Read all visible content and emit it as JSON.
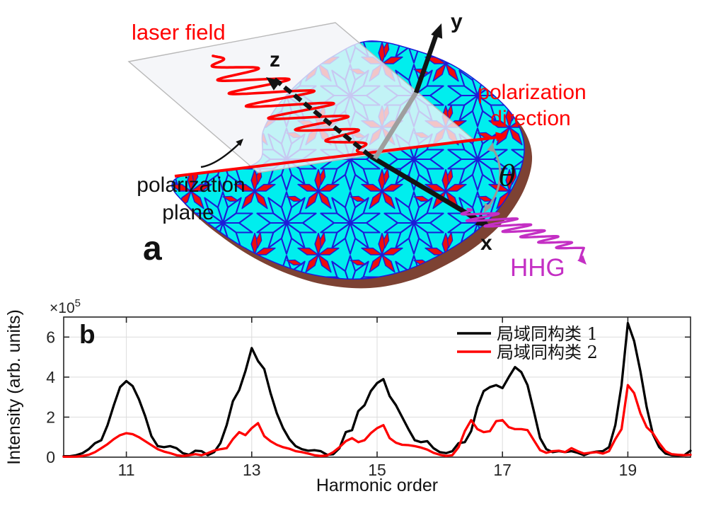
{
  "panel_a": {
    "panel_label": "a",
    "laser_field_label": "laser field",
    "polarization_plane_label_line1": "polarization",
    "polarization_plane_label_line2": "plane",
    "polarization_direction_label_line1": "polarization",
    "polarization_direction_label_line2": "direction",
    "hhg_label": "HHG",
    "axis_labels": {
      "x": "x",
      "y": "y",
      "z": "z"
    },
    "angle_label": "θ",
    "colors": {
      "laser_red": "#ff0000",
      "hhg_magenta": "#c42fc4",
      "tile_fill": "#00eeee",
      "tile_stroke": "#1c1cd8",
      "star_red": "#ee0d0d",
      "shadow_brown": "#7d4233",
      "plane_border": "#b9b9b9",
      "angle_arc_gray": "#9a9a9a",
      "axis_black": "#141414"
    }
  },
  "panel_b": {
    "panel_label": "b",
    "y_exponent_base": "×10",
    "y_exponent_sup": "5"
  },
  "chart_data": {
    "type": "line",
    "title": "",
    "xlabel": "Harmonic order",
    "ylabel": "Intensity (arb. units)",
    "y_multiplier": "×10^5",
    "xlim": [
      10,
      20
    ],
    "ylim": [
      0,
      7
    ],
    "x_ticks": [
      11,
      13,
      15,
      17,
      19
    ],
    "y_ticks": [
      0,
      2,
      4,
      6
    ],
    "grid": true,
    "legend_position": "top-right-inside",
    "x": [
      10.0,
      10.1,
      10.2,
      10.3,
      10.4,
      10.5,
      10.6,
      10.7,
      10.8,
      10.9,
      11.0,
      11.1,
      11.2,
      11.3,
      11.4,
      11.5,
      11.6,
      11.7,
      11.8,
      11.9,
      12.0,
      12.1,
      12.2,
      12.3,
      12.4,
      12.5,
      12.6,
      12.7,
      12.8,
      12.9,
      13.0,
      13.1,
      13.2,
      13.3,
      13.4,
      13.5,
      13.6,
      13.7,
      13.8,
      13.9,
      14.0,
      14.1,
      14.2,
      14.3,
      14.4,
      14.5,
      14.6,
      14.7,
      14.8,
      14.9,
      15.0,
      15.1,
      15.2,
      15.3,
      15.4,
      15.5,
      15.6,
      15.7,
      15.8,
      15.9,
      16.0,
      16.1,
      16.2,
      16.3,
      16.4,
      16.5,
      16.6,
      16.7,
      16.8,
      16.9,
      17.0,
      17.1,
      17.2,
      17.3,
      17.4,
      17.5,
      17.6,
      17.7,
      17.8,
      17.9,
      18.0,
      18.1,
      18.2,
      18.3,
      18.4,
      18.5,
      18.6,
      18.7,
      18.8,
      18.9,
      19.0,
      19.1,
      19.2,
      19.3,
      19.4,
      19.5,
      19.6,
      19.7,
      19.8,
      19.9,
      20.0
    ],
    "series": [
      {
        "name": "局域同构类 1",
        "color": "#000000",
        "values": [
          0.05,
          0.05,
          0.1,
          0.2,
          0.4,
          0.7,
          0.85,
          1.6,
          2.6,
          3.5,
          3.8,
          3.55,
          2.9,
          2.05,
          1.05,
          0.55,
          0.5,
          0.55,
          0.45,
          0.2,
          0.12,
          0.32,
          0.3,
          0.1,
          0.25,
          0.7,
          1.6,
          2.8,
          3.35,
          4.3,
          5.45,
          4.8,
          4.4,
          3.2,
          2.2,
          1.45,
          0.9,
          0.55,
          0.4,
          0.32,
          0.35,
          0.3,
          0.12,
          0.15,
          0.45,
          1.25,
          1.35,
          2.3,
          2.6,
          3.3,
          3.7,
          3.9,
          3.05,
          2.6,
          2.0,
          1.4,
          0.85,
          0.75,
          0.8,
          0.45,
          0.25,
          0.2,
          0.3,
          0.7,
          0.75,
          1.3,
          2.5,
          3.3,
          3.5,
          3.6,
          3.45,
          4.0,
          4.5,
          4.25,
          3.6,
          2.3,
          0.95,
          0.4,
          0.25,
          0.3,
          0.25,
          0.3,
          0.22,
          0.1,
          0.22,
          0.28,
          0.3,
          0.5,
          1.6,
          3.6,
          6.7,
          5.8,
          4.3,
          2.5,
          1.15,
          0.5,
          0.18,
          0.1,
          0.08,
          0.1,
          0.32
        ]
      },
      {
        "name": "局域同构类 2",
        "color": "#ff0000",
        "values": [
          0.02,
          0.02,
          0.03,
          0.06,
          0.12,
          0.25,
          0.45,
          0.65,
          0.9,
          1.1,
          1.2,
          1.15,
          1.0,
          0.8,
          0.6,
          0.4,
          0.28,
          0.2,
          0.1,
          0.06,
          0.1,
          0.15,
          0.1,
          0.2,
          0.33,
          0.4,
          0.45,
          0.9,
          1.25,
          1.1,
          1.45,
          1.7,
          1.05,
          0.8,
          0.62,
          0.5,
          0.42,
          0.3,
          0.25,
          0.18,
          0.1,
          0.06,
          0.08,
          0.25,
          0.5,
          0.8,
          0.95,
          0.75,
          0.85,
          1.2,
          1.45,
          1.6,
          0.95,
          0.72,
          0.62,
          0.6,
          0.55,
          0.48,
          0.38,
          0.22,
          0.12,
          0.06,
          0.1,
          0.5,
          1.3,
          1.85,
          1.4,
          1.25,
          1.3,
          1.8,
          1.85,
          1.5,
          1.4,
          1.4,
          1.35,
          0.85,
          0.35,
          0.22,
          0.3,
          0.32,
          0.25,
          0.45,
          0.3,
          0.18,
          0.22,
          0.25,
          0.18,
          0.3,
          0.9,
          1.4,
          3.6,
          3.2,
          2.2,
          1.5,
          1.2,
          0.7,
          0.3,
          0.15,
          0.12,
          0.1,
          0.12
        ]
      }
    ]
  }
}
